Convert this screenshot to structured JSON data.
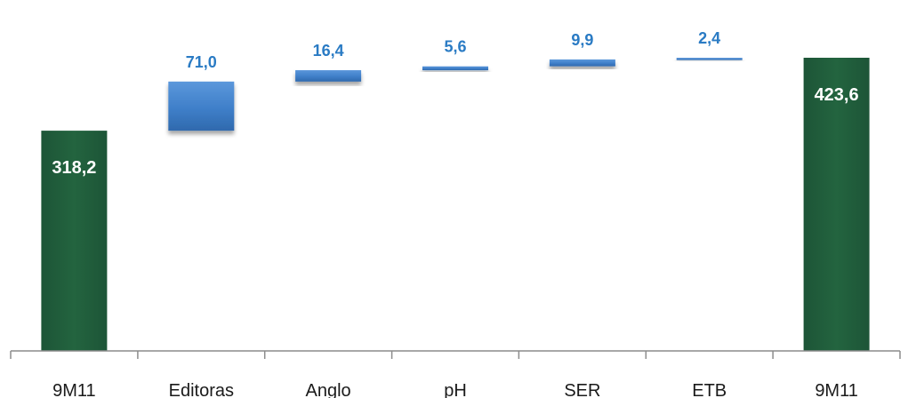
{
  "chart_data": {
    "type": "bar",
    "subtype": "waterfall",
    "categories": [
      "9M11",
      "Editoras",
      "Anglo",
      "pH",
      "SER",
      "ETB",
      "9M11"
    ],
    "values": [
      318.2,
      71.0,
      16.4,
      5.6,
      9.9,
      2.4,
      423.6
    ],
    "value_labels": [
      "318,2",
      "71,0",
      "16,4",
      "5,6",
      "9,9",
      "2,4",
      "423,6"
    ],
    "bar_kinds": [
      "total",
      "delta",
      "delta",
      "delta",
      "delta",
      "delta",
      "total"
    ],
    "title": "",
    "xlabel": "",
    "ylabel": "",
    "grid": false,
    "legend": "none",
    "colors": {
      "total": "#1f5b3a",
      "total_edge": "#2e7a4f",
      "delta": "#3f7fc9",
      "delta_label": "#2a7bc4",
      "total_label": "#ffffff",
      "axis": "#8c8c8c"
    }
  }
}
